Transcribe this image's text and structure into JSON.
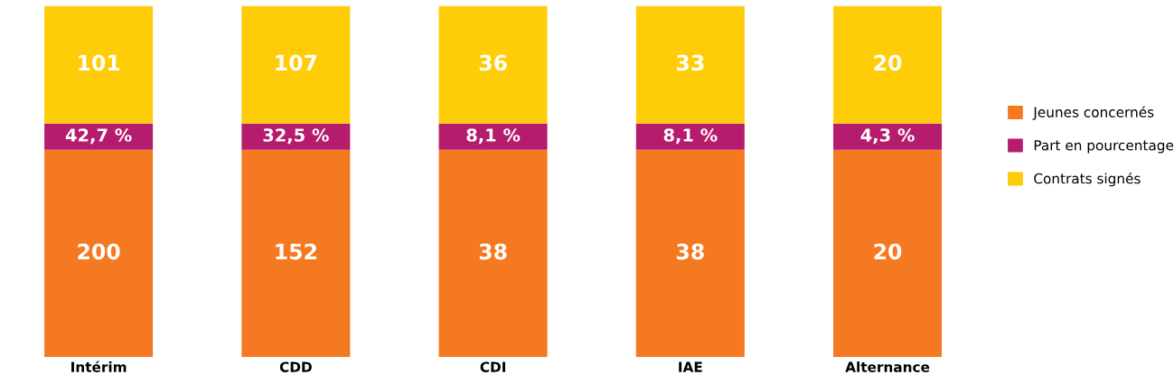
{
  "chart_data": {
    "type": "other",
    "legend": "right",
    "categories": [
      "Intérim",
      "CDD",
      "CDI",
      "IAE",
      "Alternance"
    ],
    "series": [
      {
        "name": "Jeunes concernés",
        "color": "#f47920",
        "values": [
          200,
          152,
          38,
          38,
          20
        ],
        "value_labels": [
          "200",
          "152",
          "38",
          "38",
          "20"
        ]
      },
      {
        "name": "Part en pourcentage",
        "color": "#b61c6e",
        "values": [
          42.7,
          32.5,
          8.1,
          8.1,
          4.3
        ],
        "value_labels": [
          "42,7 %",
          "32,5 %",
          "8,1 %",
          "8,1 %",
          "4,3 %"
        ]
      },
      {
        "name": "Contrats signés",
        "color": "#ffcc08",
        "values": [
          101,
          107,
          36,
          33,
          20
        ],
        "value_labels": [
          "101",
          "107",
          "36",
          "33",
          "20"
        ]
      }
    ]
  }
}
